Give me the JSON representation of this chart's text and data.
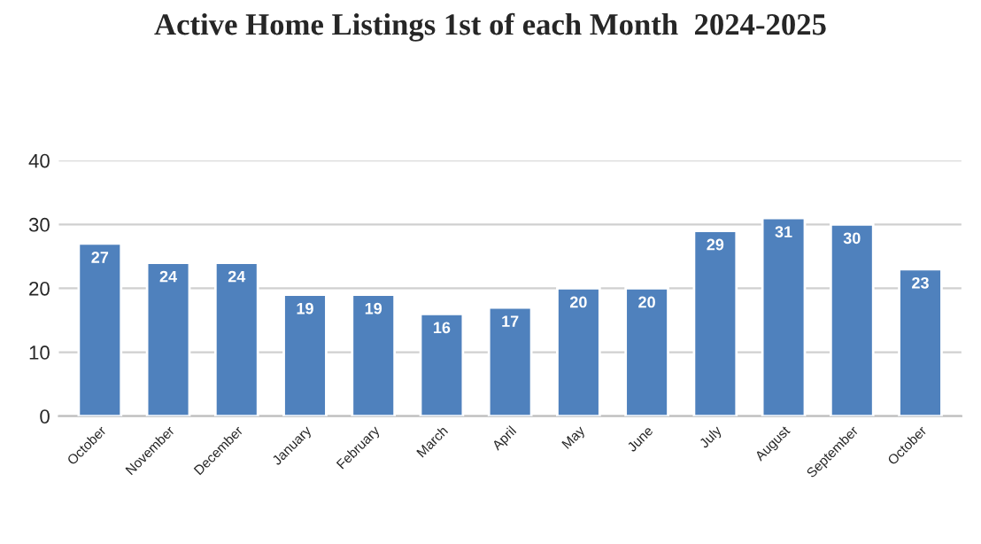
{
  "chart_data": {
    "type": "bar",
    "title": "Active Home Listings 1st of each Month  2024-2025",
    "categories": [
      "October",
      "November",
      "December",
      "January",
      "February",
      "March",
      "April",
      "May",
      "June",
      "July",
      "August",
      "September",
      "October"
    ],
    "values": [
      27,
      24,
      24,
      19,
      19,
      16,
      17,
      20,
      20,
      29,
      31,
      30,
      23
    ],
    "color": "#4f81bd",
    "ylim": [
      0,
      40
    ],
    "yticks": [
      0,
      10,
      20,
      30,
      40
    ],
    "grid": "y",
    "data_labels": true
  }
}
